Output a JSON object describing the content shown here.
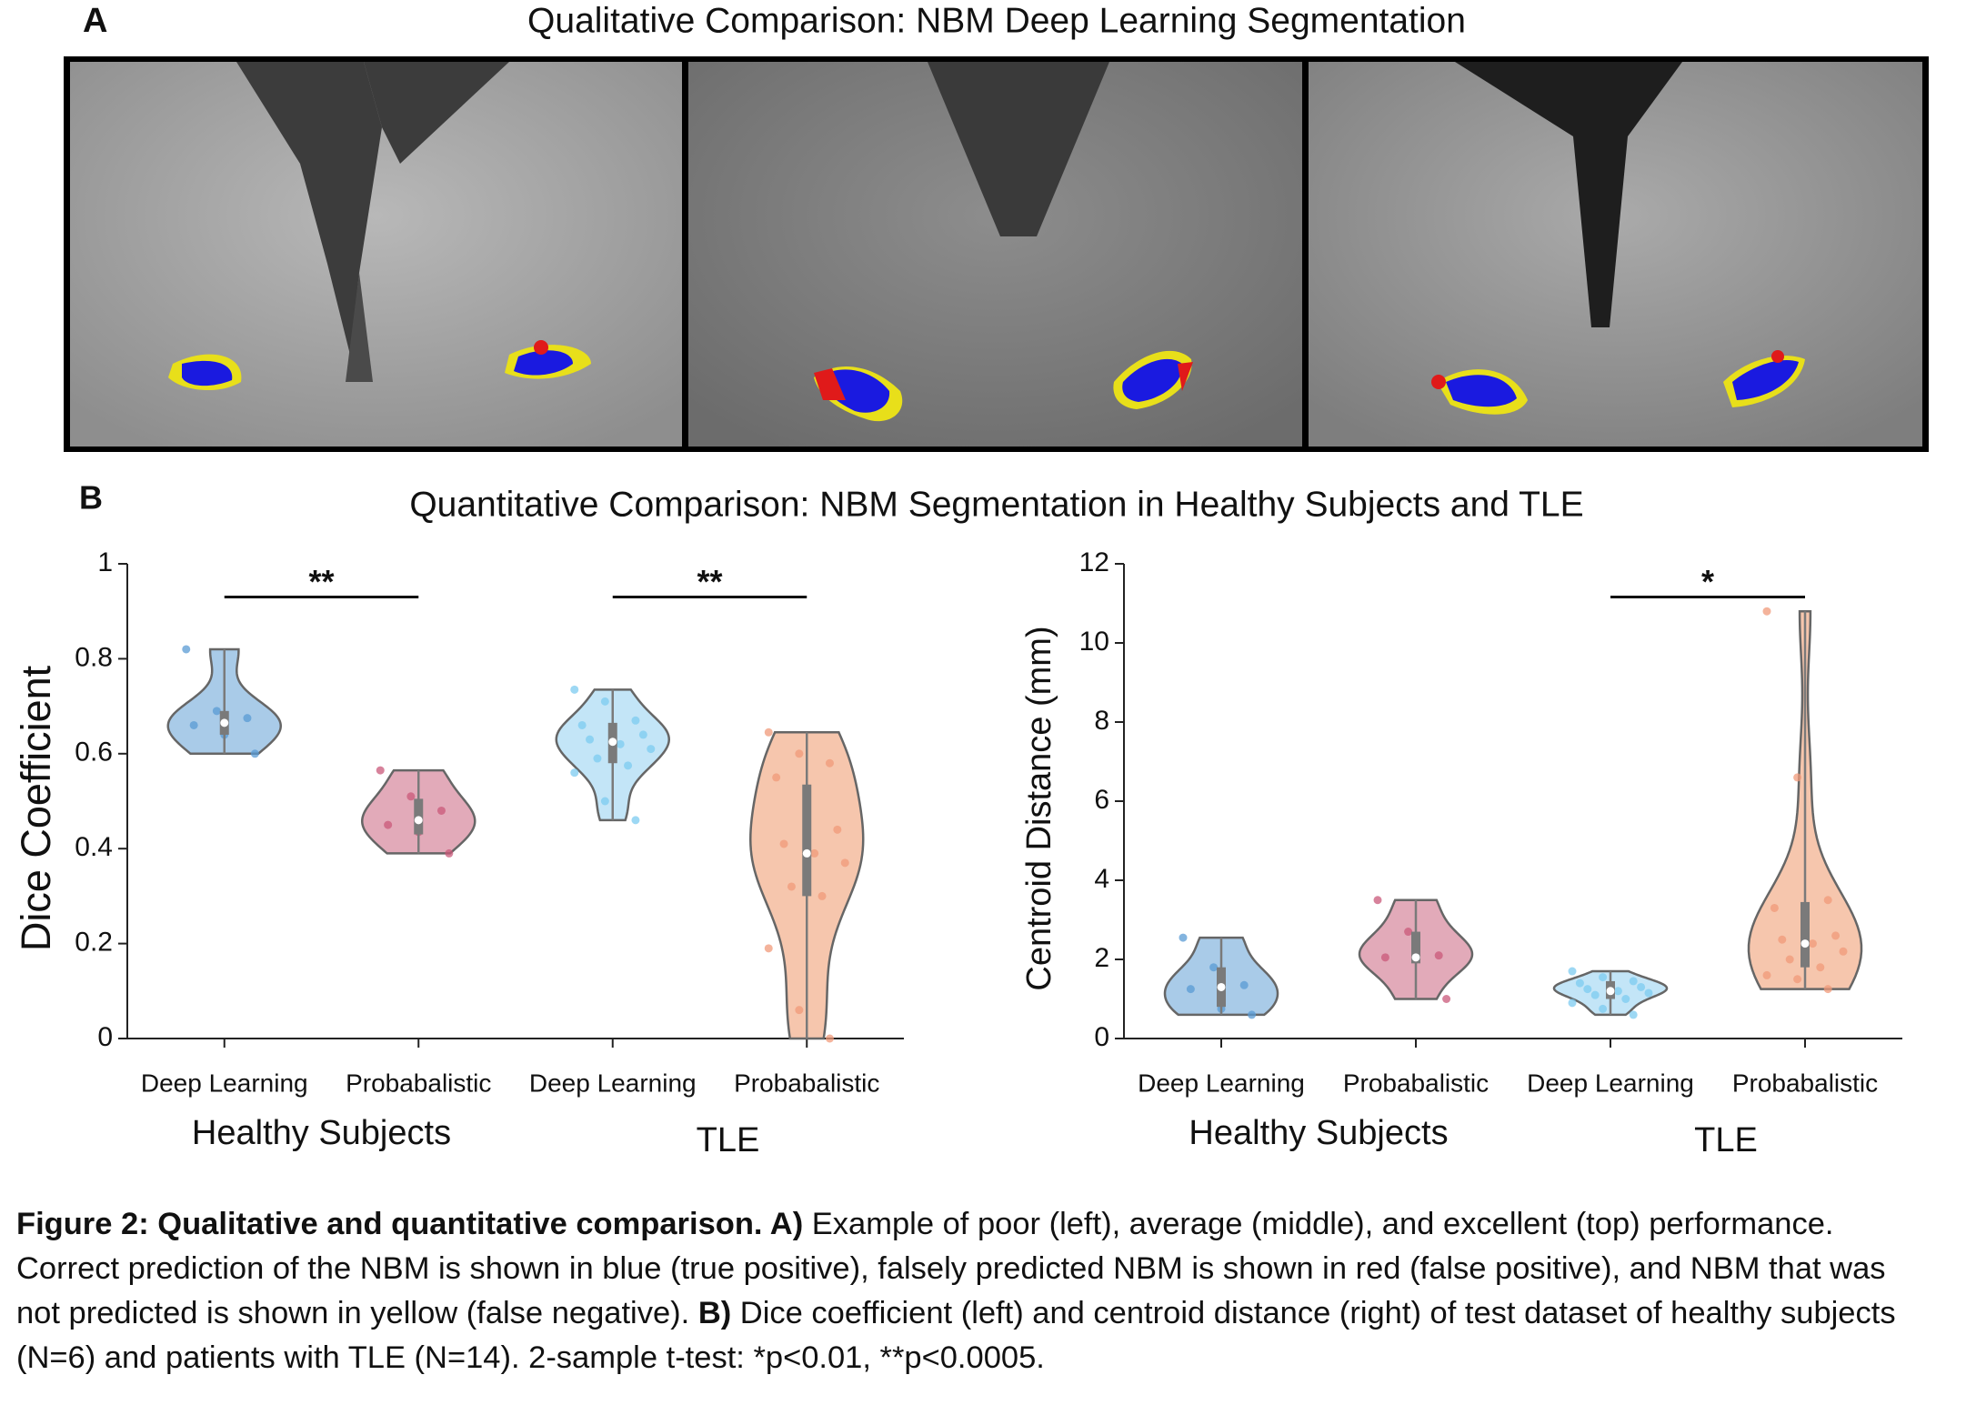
{
  "panel_a": {
    "label": "A",
    "title": "Qualitative Comparison: NBM Deep Learning Segmentation"
  },
  "panel_b": {
    "label": "B",
    "title": "Quantitative Comparison: NBM Segmentation in Healthy Subjects and TLE"
  },
  "charts": [
    {
      "type": "violin",
      "ylabel": "Dice Coefficient",
      "ylim": [
        0,
        1
      ],
      "yticks": [
        0,
        0.2,
        0.4,
        0.6,
        0.8,
        1
      ],
      "categories": [
        "Deep Learning",
        "Probabalistic",
        "Deep Learning",
        "Probabalistic"
      ],
      "groups": [
        "Healthy Subjects",
        "TLE"
      ],
      "violins": [
        {
          "color": "#a9cbe8",
          "point_color": "#5a9bd4",
          "q1": 0.64,
          "median": 0.665,
          "q3": 0.69,
          "points": [
            0.82,
            0.69,
            0.675,
            0.66,
            0.64,
            0.6
          ]
        },
        {
          "color": "#e2aab9",
          "point_color": "#c9587a",
          "q1": 0.43,
          "median": 0.46,
          "q3": 0.505,
          "points": [
            0.565,
            0.51,
            0.48,
            0.45,
            0.435,
            0.39
          ]
        },
        {
          "color": "#c3e5f7",
          "point_color": "#7ccbf0",
          "q1": 0.58,
          "median": 0.625,
          "q3": 0.665,
          "points": [
            0.735,
            0.71,
            0.67,
            0.66,
            0.65,
            0.64,
            0.63,
            0.62,
            0.61,
            0.59,
            0.575,
            0.56,
            0.5,
            0.46
          ]
        },
        {
          "color": "#f6c6ad",
          "point_color": "#f0997a",
          "q1": 0.3,
          "median": 0.39,
          "q3": 0.535,
          "points": [
            0.645,
            0.6,
            0.58,
            0.55,
            0.48,
            0.44,
            0.41,
            0.39,
            0.37,
            0.32,
            0.3,
            0.19,
            0.06,
            0
          ]
        }
      ],
      "significance": [
        {
          "pair": [
            0,
            1
          ],
          "label": "**"
        },
        {
          "pair": [
            2,
            3
          ],
          "label": "**"
        }
      ]
    },
    {
      "type": "violin",
      "ylabel": "Centroid Distance (mm)",
      "ylim": [
        0,
        12
      ],
      "yticks": [
        0,
        2,
        4,
        6,
        8,
        10,
        12
      ],
      "categories": [
        "Deep Learning",
        "Probabalistic",
        "Deep Learning",
        "Probabalistic"
      ],
      "groups": [
        "Healthy Subjects",
        "TLE"
      ],
      "violins": [
        {
          "color": "#a9cbe8",
          "point_color": "#5a9bd4",
          "q1": 0.8,
          "median": 1.3,
          "q3": 1.8,
          "points": [
            2.55,
            1.8,
            1.35,
            1.25,
            0.75,
            0.6
          ]
        },
        {
          "color": "#e2aab9",
          "point_color": "#c9587a",
          "q1": 1.9,
          "median": 2.05,
          "q3": 2.7,
          "points": [
            3.5,
            2.7,
            2.1,
            2.05,
            2,
            1
          ]
        },
        {
          "color": "#c3e5f7",
          "point_color": "#7ccbf0",
          "q1": 1,
          "median": 1.2,
          "q3": 1.45,
          "points": [
            1.7,
            1.55,
            1.45,
            1.4,
            1.35,
            1.3,
            1.25,
            1.2,
            1.15,
            1.1,
            1,
            0.9,
            0.75,
            0.6
          ]
        },
        {
          "color": "#f6c6ad",
          "point_color": "#f0997a",
          "q1": 1.8,
          "median": 2.4,
          "q3": 3.45,
          "points": [
            10.8,
            6.6,
            3.5,
            3.3,
            2.9,
            2.6,
            2.5,
            2.4,
            2.2,
            2,
            1.8,
            1.6,
            1.5,
            1.25
          ]
        }
      ],
      "significance": [
        {
          "pair": [
            2,
            3
          ],
          "label": "*"
        }
      ]
    }
  ],
  "caption": [
    {
      "text": "Figure 2: Qualitative and quantitative comparison. A)",
      "bold": true
    },
    {
      "text": " Example of poor (left), average (middle), and excellent (top) performance. Correct prediction of the NBM is shown in blue (true positive), falsely predicted NBM is shown in red (false positive), and NBM that was not predicted is shown in yellow (false negative). ",
      "bold": false
    },
    {
      "text": "B)",
      "bold": true
    },
    {
      "text": " Dice coefficient (left) and centroid distance (right) of test dataset of healthy subjects (N=6) and patients with TLE (N=14). 2-sample t-test: *p<0.01, **p<0.0005.",
      "bold": false
    }
  ]
}
